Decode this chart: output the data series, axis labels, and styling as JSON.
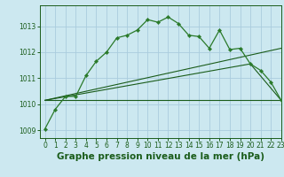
{
  "title": "Graphe pression niveau de la mer (hPa)",
  "background_color": "#cce8f0",
  "grid_color": "#aaccdd",
  "xlim": [
    -0.5,
    23
  ],
  "ylim": [
    1008.7,
    1013.8
  ],
  "yticks": [
    1009,
    1010,
    1011,
    1012,
    1013
  ],
  "xticks": [
    0,
    1,
    2,
    3,
    4,
    5,
    6,
    7,
    8,
    9,
    10,
    11,
    12,
    13,
    14,
    15,
    16,
    17,
    18,
    19,
    20,
    21,
    22,
    23
  ],
  "line1_x": [
    0,
    1,
    2,
    3,
    4,
    5,
    6,
    7,
    8,
    9,
    10,
    11,
    12,
    13,
    14,
    15,
    16,
    17,
    18,
    19,
    20,
    21,
    22,
    23
  ],
  "line1_y": [
    1009.05,
    1009.8,
    1010.3,
    1010.3,
    1011.1,
    1011.65,
    1012.0,
    1012.55,
    1012.65,
    1012.85,
    1013.25,
    1013.15,
    1013.35,
    1013.1,
    1012.65,
    1012.6,
    1012.15,
    1012.85,
    1012.1,
    1012.15,
    1011.55,
    1011.3,
    1010.85,
    1010.15
  ],
  "line2_x": [
    0,
    19,
    23
  ],
  "line2_y": [
    1010.15,
    1010.15,
    1010.15
  ],
  "line3_x": [
    0,
    20,
    23
  ],
  "line3_y": [
    1010.15,
    1011.55,
    1010.15
  ],
  "line4_x": [
    0,
    23
  ],
  "line4_y": [
    1010.15,
    1012.15
  ],
  "dark_green": "#1a5c1a",
  "medium_green": "#2a7a2a",
  "title_fontsize": 7.5,
  "tick_fontsize": 5.5
}
